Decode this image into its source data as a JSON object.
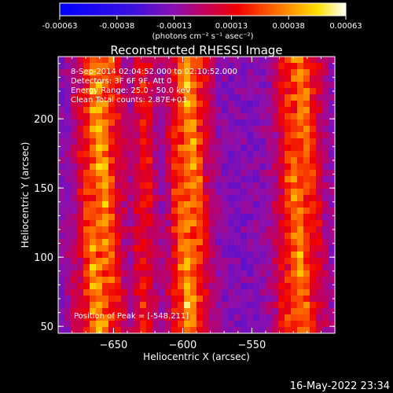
{
  "chart_data": {
    "type": "heatmap",
    "title": "Reconstructed RHESSI Image",
    "xlabel": "Heliocentric X (arcsec)",
    "ylabel": "Heliocentric Y (arcsec)",
    "xlim": [
      -690,
      -490
    ],
    "ylim": [
      45,
      245
    ],
    "x_ticks": [
      -650,
      -600,
      -550
    ],
    "y_ticks": [
      50,
      100,
      150,
      200
    ],
    "colorbar": {
      "ticks": [
        "-0.00063",
        "-0.00038",
        "-0.00013",
        "0.00013",
        "0.00038",
        "0.00063"
      ],
      "range": [
        -0.00063,
        0.00063
      ],
      "units": "(photons cm⁻² s⁻¹ asec⁻²)"
    },
    "annotations": {
      "time": "8-Sep-2014 02:04:52.000 to 02:10:52.000",
      "detectors": "Detectors: 3F 6F 9F, Att 0",
      "energy": "Energy Range: 25.0 - 50.0 keV",
      "clean": "Clean    Total counts: 2.87E+03",
      "peak": "Position of Peak = [-548,211]"
    }
  },
  "footer": {
    "timestamp": "16-May-2022 23:34"
  }
}
